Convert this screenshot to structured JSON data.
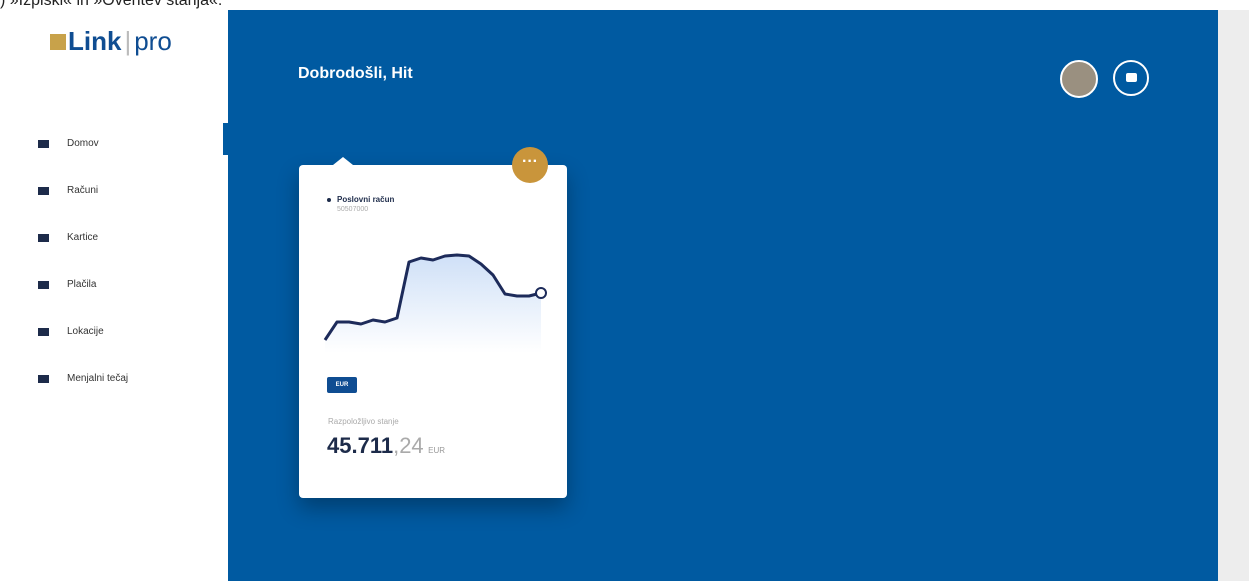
{
  "caption": ") »Izpiski« in »Overitev stanja«.",
  "logo": {
    "brand": "Link",
    "suffix": "pro"
  },
  "nav": [
    "Domov",
    "Računi",
    "Kartice",
    "Plačila",
    "Lokacije",
    "Menjalni tečaj"
  ],
  "header": {
    "title": "Dobrodošli, Hit"
  },
  "card": {
    "account_name": "Poslovni račun",
    "account_number": "50507000",
    "sparkline": [
      20,
      38,
      38,
      36,
      40,
      38,
      42,
      98,
      102,
      100,
      104,
      105,
      104,
      96,
      85,
      66,
      64,
      64,
      67
    ],
    "currency_badge": "EUR",
    "balance_label": "Razpoložljivo stanje",
    "balance_whole": "45.711",
    "balance_decimals": ",24",
    "balance_currency": "EUR"
  }
}
